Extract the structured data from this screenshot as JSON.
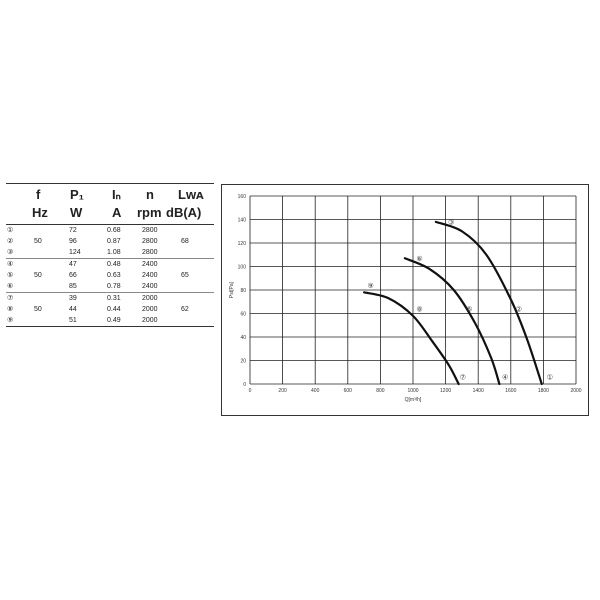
{
  "table": {
    "headers": [
      {
        "sym": "f",
        "unit": "Hz"
      },
      {
        "sym": "P₁",
        "unit": "W"
      },
      {
        "sym": "Iₙ",
        "unit": "A"
      },
      {
        "sym": "n",
        "unit": "rpm"
      },
      {
        "sym": "Lᴡᴀ",
        "unit": "dB(A)"
      }
    ],
    "groups": [
      {
        "hz": "50",
        "lwa": "68",
        "rows": [
          {
            "num": "①",
            "p": "72",
            "i": "0.68",
            "n": "2800"
          },
          {
            "num": "②",
            "p": "96",
            "i": "0.87",
            "n": "2800"
          },
          {
            "num": "③",
            "p": "124",
            "i": "1.08",
            "n": "2800"
          }
        ]
      },
      {
        "hz": "50",
        "lwa": "65",
        "rows": [
          {
            "num": "④",
            "p": "47",
            "i": "0.48",
            "n": "2400"
          },
          {
            "num": "⑤",
            "p": "66",
            "i": "0.63",
            "n": "2400"
          },
          {
            "num": "⑥",
            "p": "85",
            "i": "0.78",
            "n": "2400"
          }
        ]
      },
      {
        "hz": "50",
        "lwa": "62",
        "rows": [
          {
            "num": "⑦",
            "p": "39",
            "i": "0.31",
            "n": "2000"
          },
          {
            "num": "⑧",
            "p": "44",
            "i": "0.44",
            "n": "2000"
          },
          {
            "num": "⑨",
            "p": "51",
            "i": "0.49",
            "n": "2000"
          }
        ]
      }
    ]
  },
  "chart_data": {
    "type": "line",
    "xlabel": "Q[m³/h]",
    "ylabel": "Pst[Pa]",
    "xlim": [
      0,
      2000
    ],
    "ylim": [
      0,
      160
    ],
    "xticks": [
      0,
      200,
      400,
      600,
      800,
      1000,
      1200,
      1400,
      1600,
      1800,
      2000
    ],
    "yticks": [
      0,
      20,
      40,
      60,
      80,
      100,
      120,
      140,
      160
    ],
    "grid": true,
    "series": [
      {
        "name": "①②③",
        "points": [
          [
            1140,
            138
          ],
          [
            1300,
            130
          ],
          [
            1450,
            110
          ],
          [
            1600,
            72
          ],
          [
            1700,
            38
          ],
          [
            1790,
            0
          ]
        ],
        "labels": [
          {
            "text": "③",
            "x": 1235,
            "y": 138
          },
          {
            "text": "②",
            "x": 1650,
            "y": 64
          },
          {
            "text": "①",
            "x": 1840,
            "y": 6
          }
        ]
      },
      {
        "name": "④⑤⑥",
        "points": [
          [
            950,
            107
          ],
          [
            1100,
            98
          ],
          [
            1250,
            80
          ],
          [
            1380,
            52
          ],
          [
            1480,
            22
          ],
          [
            1530,
            0
          ]
        ],
        "labels": [
          {
            "text": "⑥",
            "x": 1040,
            "y": 107
          },
          {
            "text": "⑤",
            "x": 1345,
            "y": 64
          },
          {
            "text": "④",
            "x": 1565,
            "y": 6
          }
        ]
      },
      {
        "name": "⑦⑧⑨",
        "points": [
          [
            700,
            78
          ],
          [
            850,
            73
          ],
          [
            1000,
            58
          ],
          [
            1120,
            36
          ],
          [
            1220,
            16
          ],
          [
            1280,
            0
          ]
        ],
        "labels": [
          {
            "text": "⑨",
            "x": 740,
            "y": 84
          },
          {
            "text": "⑧",
            "x": 1040,
            "y": 64
          },
          {
            "text": "⑦",
            "x": 1305,
            "y": 6
          }
        ]
      }
    ]
  }
}
